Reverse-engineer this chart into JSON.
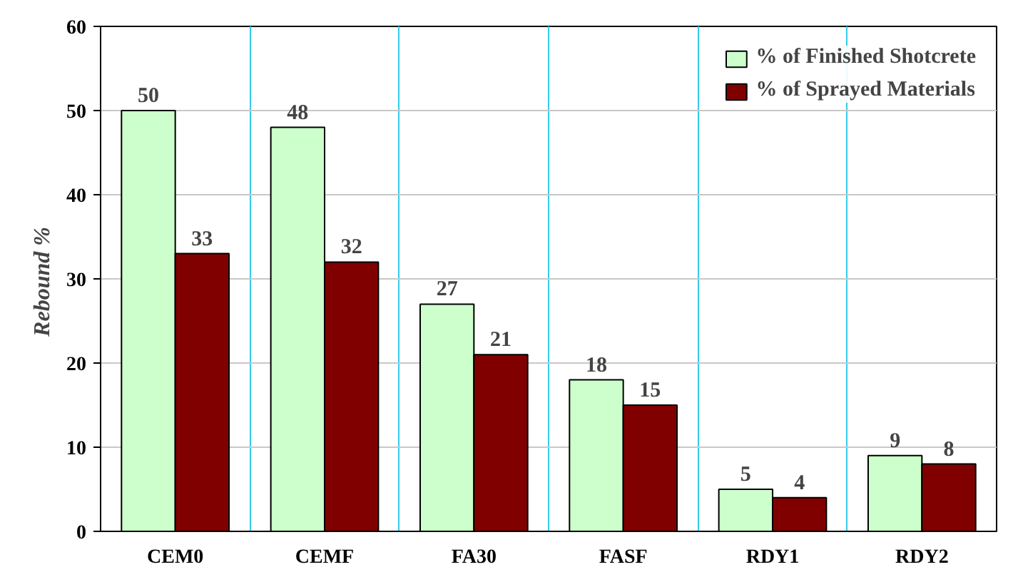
{
  "chart_data": {
    "type": "bar",
    "ylabel": "Rebound  %",
    "categories": [
      "CEM0",
      "CEMF",
      "FA30",
      "FASF",
      "RDY1",
      "RDY2"
    ],
    "series": [
      {
        "name": "% of Finished Shotcrete",
        "color": "#ccffcc",
        "values": [
          50,
          48,
          27,
          18,
          5,
          9
        ]
      },
      {
        "name": "% of Sprayed Materials",
        "color": "#800000",
        "values": [
          33,
          32,
          21,
          15,
          4,
          8
        ]
      }
    ],
    "ylim": [
      0,
      60
    ],
    "yticks": [
      0,
      10,
      20,
      30,
      40,
      50,
      60
    ],
    "grid": true,
    "legend": "top right",
    "data_labels": true
  }
}
